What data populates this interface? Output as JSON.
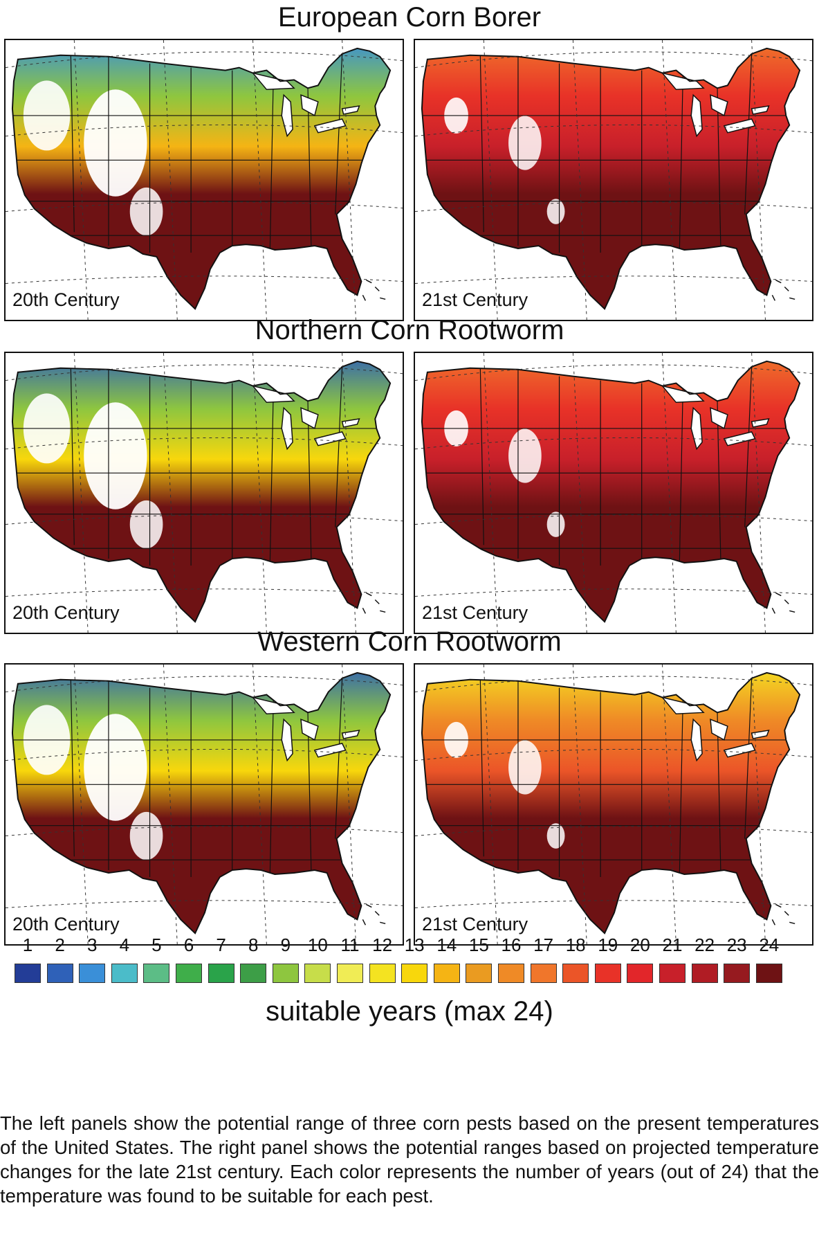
{
  "rows": [
    {
      "title": "European Corn Borer",
      "left_label": "20th Century",
      "right_label": "21st Century",
      "left_north_value": 3,
      "right_north_value": 17
    },
    {
      "title": "Northern Corn Rootworm",
      "left_label": "20th Century",
      "right_label": "21st Century",
      "left_north_value": 2,
      "right_north_value": 17
    },
    {
      "title": "Western Corn Rootworm",
      "left_label": "20th Century",
      "right_label": "21st Century",
      "left_north_value": 2,
      "right_north_value": 12
    }
  ],
  "legend": {
    "title": "suitable years (max 24)",
    "values": [
      1,
      2,
      3,
      4,
      5,
      6,
      7,
      8,
      9,
      10,
      11,
      12,
      13,
      14,
      15,
      16,
      17,
      18,
      19,
      20,
      21,
      22,
      23,
      24
    ],
    "colors": [
      "#233d97",
      "#2f61b8",
      "#3a8fd8",
      "#4bbcc9",
      "#5cbd86",
      "#3fae4a",
      "#2aa34a",
      "#3d9e47",
      "#8ec63f",
      "#c7dd4a",
      "#f0ec55",
      "#f4e321",
      "#f8d70c",
      "#f5b414",
      "#ea9b21",
      "#ef8a26",
      "#f0762b",
      "#eb5528",
      "#e83228",
      "#e2262a",
      "#c8202a",
      "#b01c24",
      "#961a1f",
      "#6e1214"
    ]
  },
  "caption": "The left panels show the potential range of three corn pests based on the present temperatures of the United States. The right panel shows the potential ranges based on projected temperature changes for the late 21st century. Each color represents the number of years (out of 24) that the temperature was found to be suitable for each pest."
}
